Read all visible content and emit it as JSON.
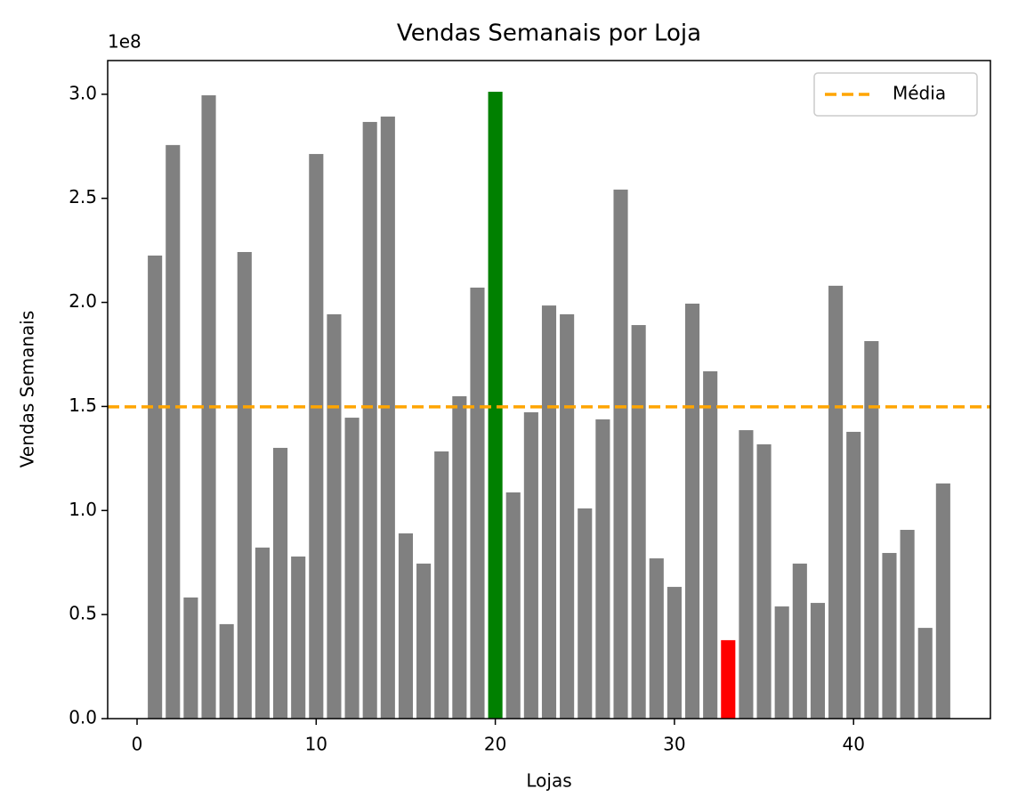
{
  "chart_data": {
    "type": "bar",
    "title": "Vendas Semanais por Loja",
    "x_label": "Lojas",
    "y_label": "Vendas Semanais",
    "offset_text": "1e8",
    "x": [
      1,
      2,
      3,
      4,
      5,
      6,
      7,
      8,
      9,
      10,
      11,
      12,
      13,
      14,
      15,
      16,
      17,
      18,
      19,
      20,
      21,
      22,
      23,
      24,
      25,
      26,
      27,
      28,
      29,
      30,
      31,
      32,
      33,
      34,
      35,
      36,
      37,
      38,
      39,
      40,
      41,
      42,
      43,
      44,
      45
    ],
    "values": [
      2.225,
      2.756,
      0.582,
      2.995,
      0.454,
      2.242,
      0.822,
      1.301,
      0.779,
      2.713,
      1.943,
      1.446,
      2.867,
      2.893,
      0.89,
      0.745,
      1.284,
      1.549,
      2.071,
      3.012,
      1.087,
      1.472,
      1.985,
      1.943,
      1.01,
      1.438,
      2.542,
      1.891,
      0.77,
      0.633,
      1.994,
      1.669,
      0.377,
      1.386,
      1.318,
      0.539,
      0.745,
      0.556,
      2.08,
      1.378,
      1.814,
      0.796,
      0.907,
      0.436,
      1.13
    ],
    "colors": [
      "gray",
      "gray",
      "gray",
      "gray",
      "gray",
      "gray",
      "gray",
      "gray",
      "gray",
      "gray",
      "gray",
      "gray",
      "gray",
      "gray",
      "gray",
      "gray",
      "gray",
      "gray",
      "gray",
      "green",
      "gray",
      "gray",
      "gray",
      "gray",
      "gray",
      "gray",
      "gray",
      "gray",
      "gray",
      "gray",
      "gray",
      "gray",
      "red",
      "gray",
      "gray",
      "gray",
      "gray",
      "gray",
      "gray",
      "gray",
      "gray",
      "gray",
      "gray",
      "gray",
      "gray"
    ],
    "bar_width": 0.8,
    "mean_line": {
      "name": "Média",
      "value": 1.498,
      "color": "orange"
    },
    "legend": "upper right",
    "xlim": [
      -1.64,
      47.64
    ],
    "xticks": [
      0,
      10,
      20,
      30,
      40
    ],
    "ylim": [
      0,
      3.162
    ],
    "yticks": [
      {
        "value": 0,
        "label": "0.0"
      },
      0.5,
      {
        "value": 1,
        "label": "1.0"
      },
      1.5,
      {
        "value": 2,
        "label": "2.0"
      },
      2.5,
      {
        "value": 3,
        "label": "3.0"
      }
    ]
  }
}
